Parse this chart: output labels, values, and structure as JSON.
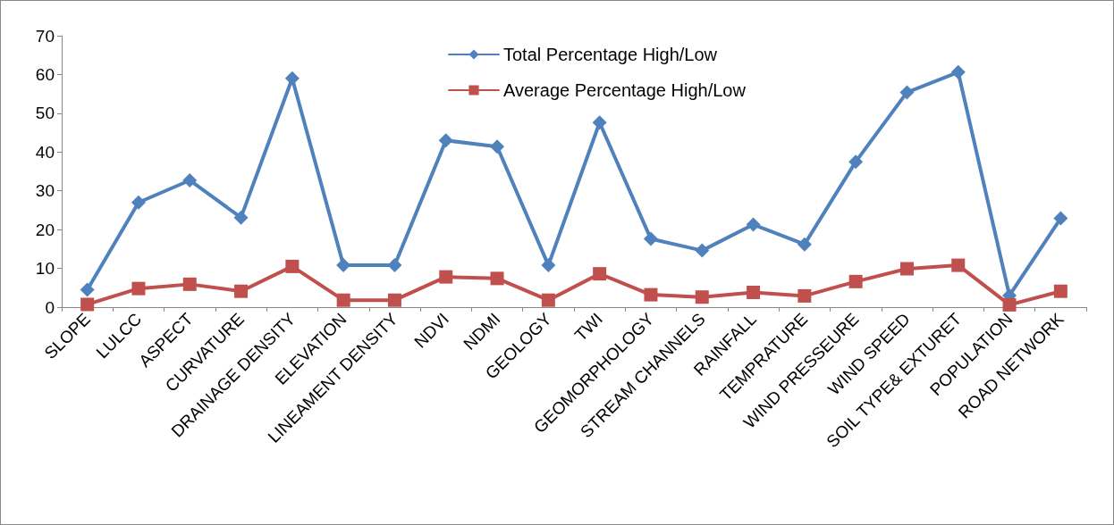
{
  "chart_data": {
    "type": "line",
    "categories": [
      "SLOPE",
      "LULCC",
      "ASPECT",
      "CURVATURE",
      "DRAINAGE DENSITY",
      "ELEVATION",
      "LINEAMENT DENSITY",
      "NDVI",
      "NDMI",
      "GEOLOGY",
      "TWI",
      "GEOMORPHOLOGY",
      "STREAM CHANNELS",
      "RAINFALL",
      "TEMPRATURE",
      "WIND PRESSEURE",
      "WIND SPEED",
      "SOIL TYPE& EXTURET",
      "POPULATION",
      "ROAD NETWORK"
    ],
    "series": [
      {
        "name": "Total Percentage High/Low",
        "color": "#4f81bd",
        "marker": "diamond",
        "values": [
          4.5,
          27,
          32.7,
          23.1,
          59,
          10.8,
          10.8,
          43,
          41.4,
          10.8,
          47.6,
          17.6,
          14.6,
          21.3,
          16.2,
          37.5,
          55.4,
          60.6,
          3,
          22.9
        ]
      },
      {
        "name": "Average Percentage High/Low",
        "color": "#c0504d",
        "marker": "square",
        "values": [
          0.7,
          4.8,
          5.9,
          4.1,
          10.5,
          1.8,
          1.8,
          7.8,
          7.4,
          1.8,
          8.6,
          3.2,
          2.6,
          3.8,
          2.9,
          6.6,
          9.9,
          10.8,
          0.6,
          4.1
        ]
      }
    ],
    "ylim": [
      0,
      70
    ],
    "yticks": [
      0,
      10,
      20,
      30,
      40,
      50,
      60,
      70
    ],
    "grid": false,
    "legend": "top",
    "line_style": "solid"
  }
}
